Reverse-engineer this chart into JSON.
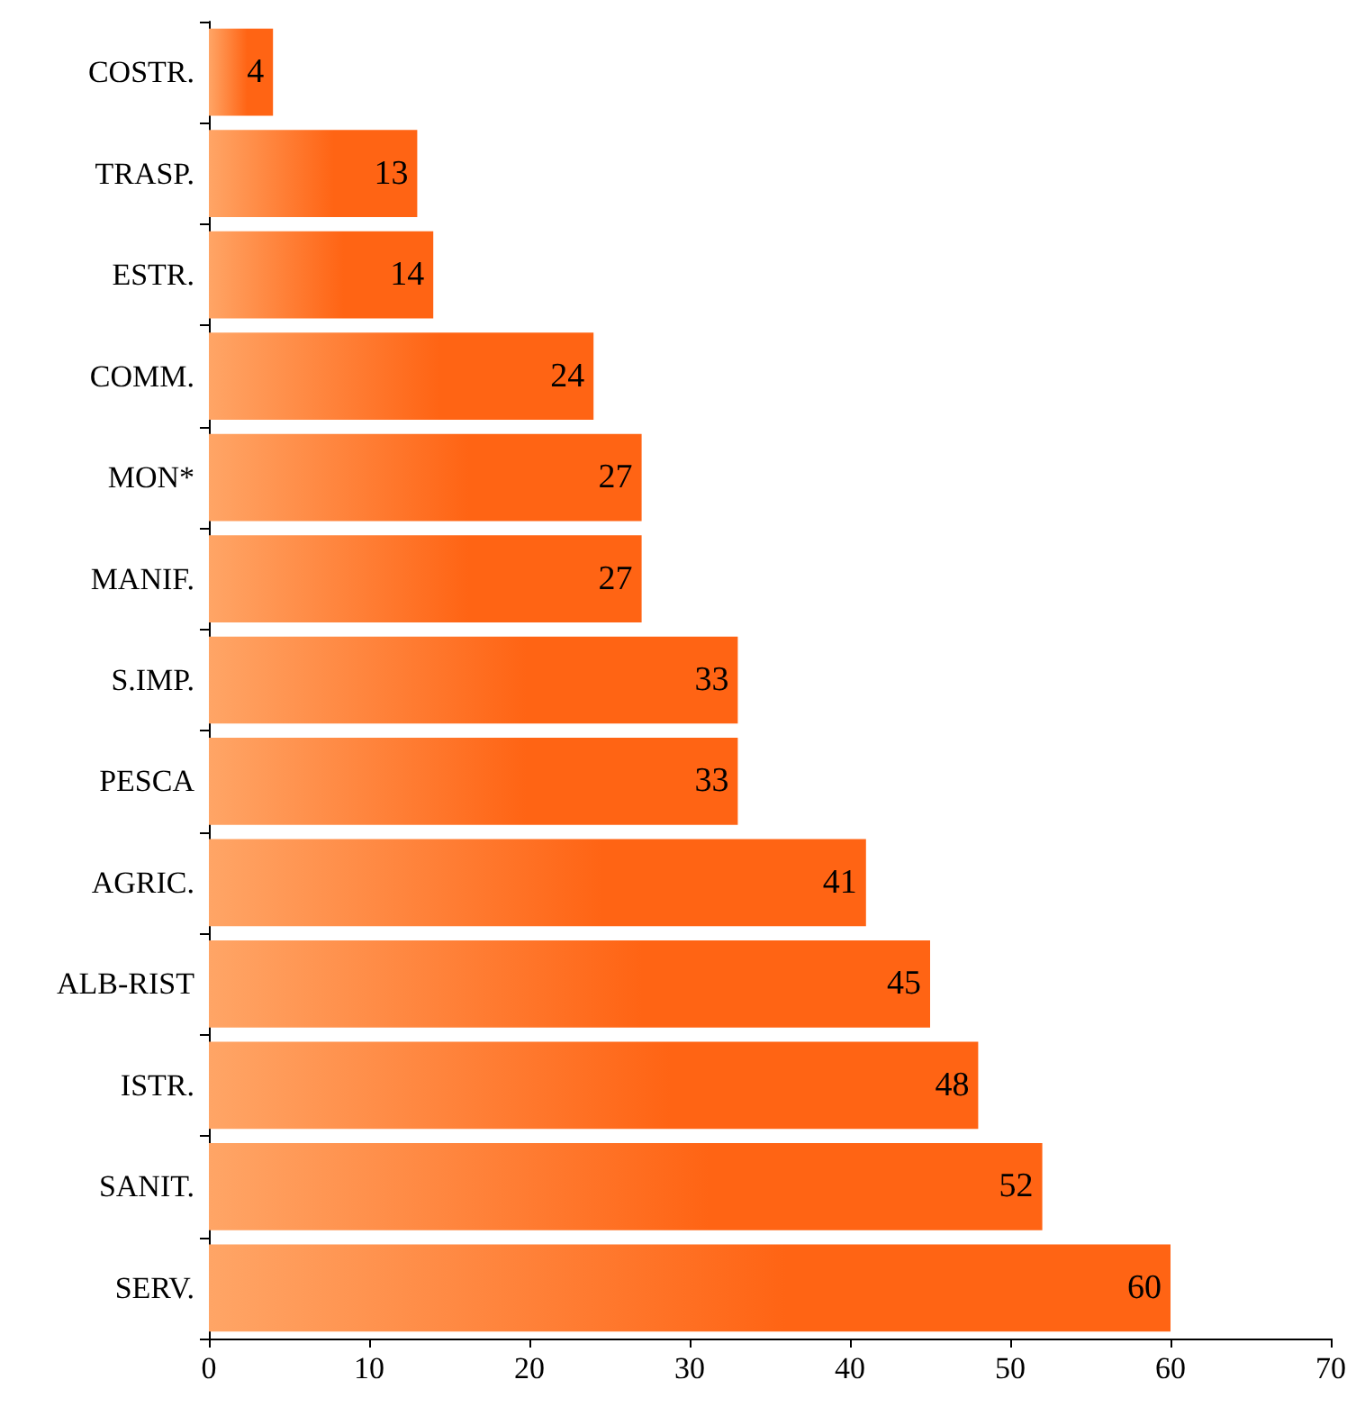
{
  "chart_data": {
    "type": "bar",
    "orientation": "horizontal",
    "categories": [
      "COSTR.",
      "TRASP.",
      "ESTR.",
      "COMM.",
      "MON*",
      "MANIF.",
      "S.IMP.",
      "PESCA",
      "AGRIC.",
      "ALB-RIST",
      "ISTR.",
      "SANIT.",
      "SERV."
    ],
    "values": [
      4,
      13,
      14,
      24,
      27,
      27,
      33,
      33,
      41,
      45,
      48,
      52,
      60
    ],
    "color": "#ff6414",
    "xlim": [
      0,
      70
    ],
    "xticks": [
      0,
      10,
      20,
      30,
      40,
      50,
      60,
      70
    ],
    "grid": false,
    "data_labels": true
  }
}
